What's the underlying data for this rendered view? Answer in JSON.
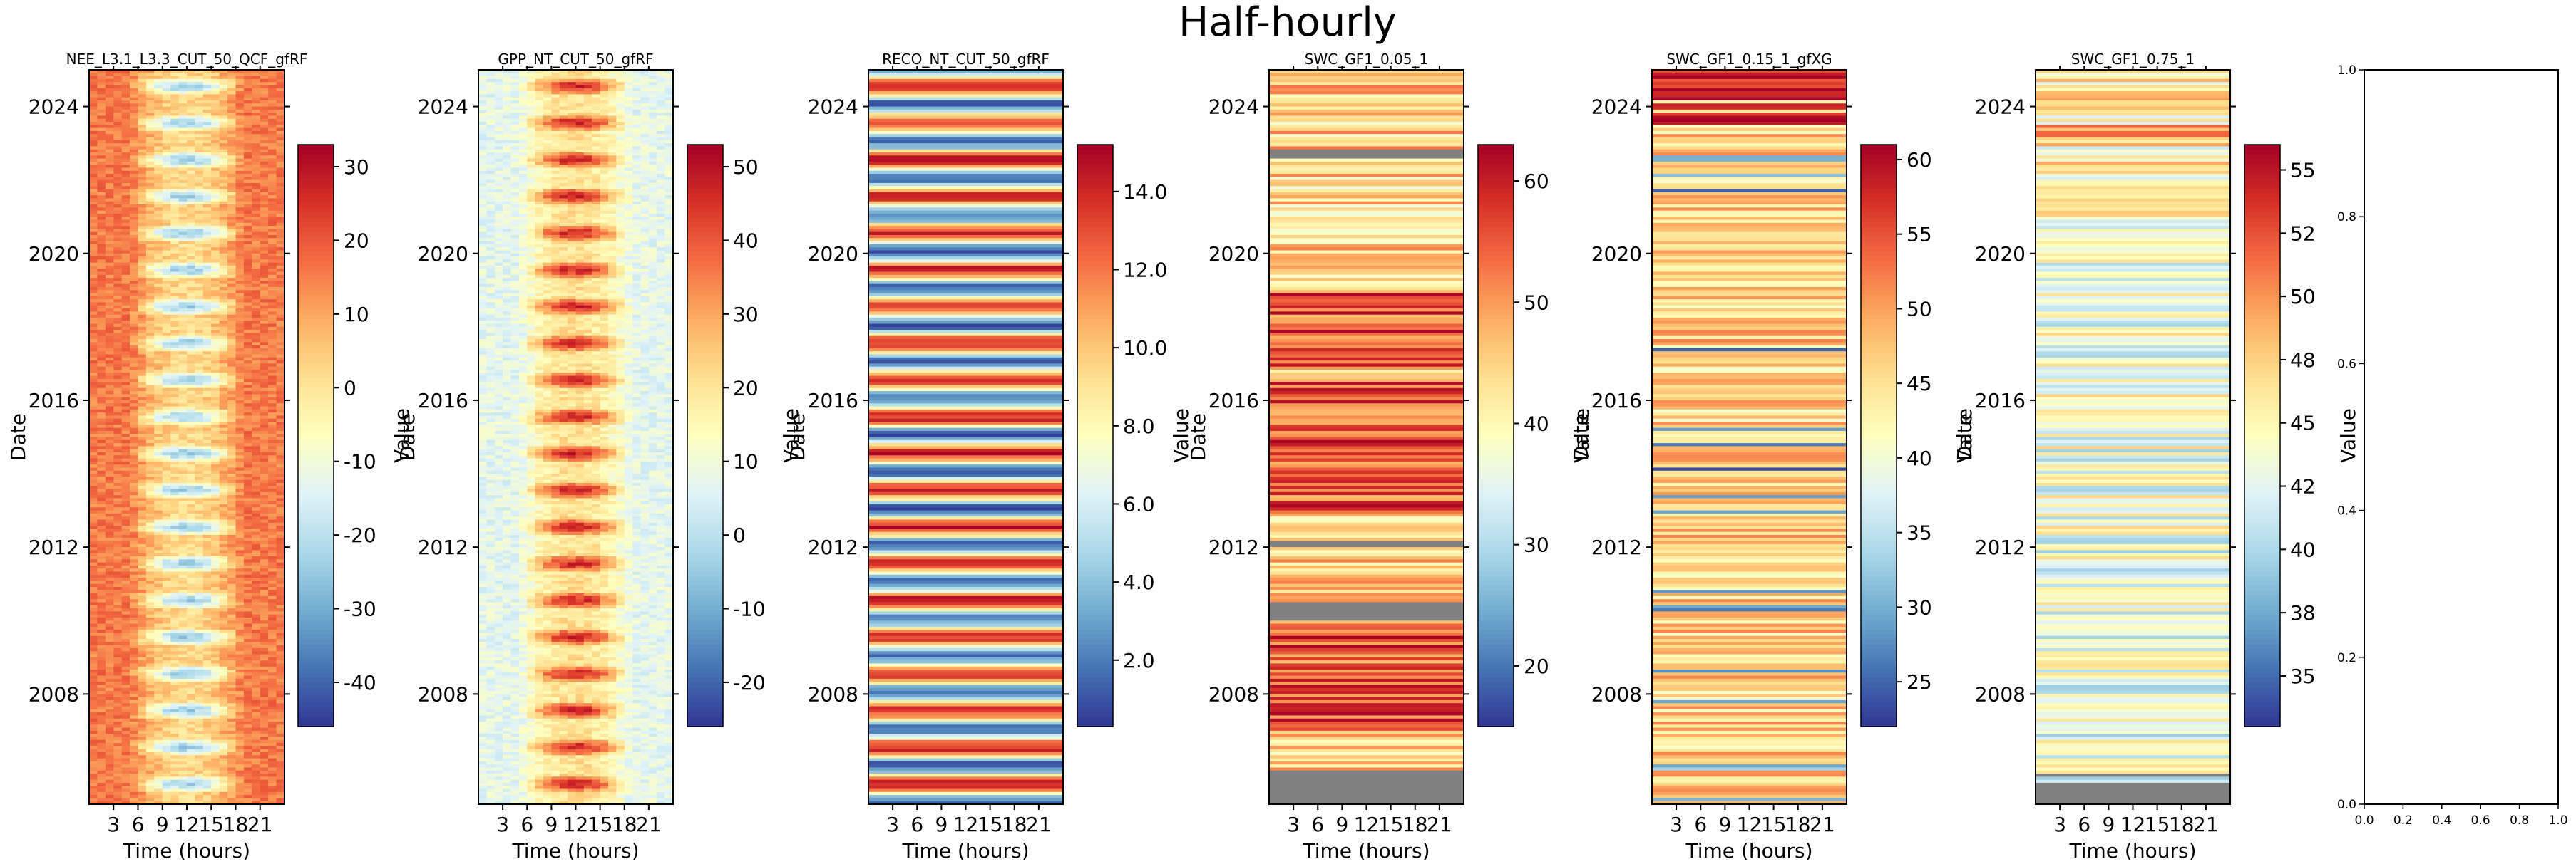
{
  "figure": {
    "title": "Half-hourly"
  },
  "chart_data": [
    {
      "type": "heatmap",
      "title": "NEE_L3.1_L3.3_CUT_50_QCF_gfRF",
      "xlabel": "Time (hours)",
      "ylabel": "Date",
      "xticks": [
        "3",
        "6",
        "9",
        "12",
        "15",
        "18",
        "21"
      ],
      "xlim": [
        0,
        24
      ],
      "yticks": [
        "2008",
        "2012",
        "2016",
        "2020",
        "2024"
      ],
      "ylim": [
        2005.0,
        2025.0
      ],
      "colorbar": {
        "label": "Value",
        "ticks": [
          "30",
          "20",
          "10",
          "0",
          "-10",
          "-20",
          "-30",
          "-40"
        ],
        "tick_values": [
          30,
          20,
          10,
          0,
          -10,
          -20,
          -30,
          -40
        ],
        "range": [
          -46,
          33
        ]
      },
      "colormap": "RdYlBu_r",
      "pattern": "diurnal",
      "missing_ranges": []
    },
    {
      "type": "heatmap",
      "title": "GPP_NT_CUT_50_gfRF",
      "xlabel": "Time (hours)",
      "ylabel": "Date",
      "xticks": [
        "3",
        "6",
        "9",
        "12",
        "15",
        "18",
        "21"
      ],
      "xlim": [
        0,
        24
      ],
      "yticks": [
        "2008",
        "2012",
        "2016",
        "2020",
        "2024"
      ],
      "ylim": [
        2005.0,
        2025.0
      ],
      "colorbar": {
        "label": "Value",
        "ticks": [
          "50",
          "40",
          "30",
          "20",
          "10",
          "0",
          "-10",
          "-20"
        ],
        "tick_values": [
          50,
          40,
          30,
          20,
          10,
          0,
          -10,
          -20
        ],
        "range": [
          -26,
          53
        ]
      },
      "colormap": "RdYlBu_r",
      "pattern": "diurnal-positive",
      "missing_ranges": []
    },
    {
      "type": "heatmap",
      "title": "RECO_NT_CUT_50_gfRF",
      "xlabel": "Time (hours)",
      "ylabel": "Date",
      "xticks": [
        "3",
        "6",
        "9",
        "12",
        "15",
        "18",
        "21"
      ],
      "xlim": [
        0,
        24
      ],
      "yticks": [
        "2008",
        "2012",
        "2016",
        "2020",
        "2024"
      ],
      "ylim": [
        2005.0,
        2025.0
      ],
      "colorbar": {
        "label": "Value",
        "ticks": [
          "14.0",
          "12.0",
          "10.0",
          "8.0",
          "6.0",
          "4.0",
          "2.0"
        ],
        "tick_values": [
          14,
          12,
          10,
          8,
          6,
          4,
          2
        ],
        "range": [
          0.3,
          15.2
        ]
      },
      "colormap": "RdYlBu_r",
      "pattern": "seasonal",
      "missing_ranges": []
    },
    {
      "type": "heatmap",
      "title": "SWC_GF1_0.05_1",
      "xlabel": "Time (hours)",
      "ylabel": "Date",
      "xticks": [
        "3",
        "6",
        "9",
        "12",
        "15",
        "18",
        "21"
      ],
      "xlim": [
        0,
        24
      ],
      "yticks": [
        "2008",
        "2012",
        "2016",
        "2020",
        "2024"
      ],
      "ylim": [
        2005.0,
        2025.0
      ],
      "colorbar": {
        "label": "Value",
        "ticks": [
          "60",
          "50",
          "40",
          "30",
          "20"
        ],
        "tick_values": [
          60,
          50,
          40,
          30,
          20
        ],
        "range": [
          15,
          63
        ]
      },
      "colormap": "RdYlBu_r",
      "pattern": "bands-wet",
      "missing_ranges": [
        [
          2005.0,
          2005.9
        ],
        [
          2010.0,
          2010.5
        ],
        [
          2012.0,
          2012.2
        ],
        [
          2022.6,
          2022.8
        ]
      ]
    },
    {
      "type": "heatmap",
      "title": "SWC_GF1_0.15_1_gfXG",
      "xlabel": "Time (hours)",
      "ylabel": "Date",
      "xticks": [
        "3",
        "6",
        "9",
        "12",
        "15",
        "18",
        "21"
      ],
      "xlim": [
        0,
        24
      ],
      "yticks": [
        "2008",
        "2012",
        "2016",
        "2020",
        "2024"
      ],
      "ylim": [
        2005.0,
        2025.0
      ],
      "colorbar": {
        "label": "Value",
        "ticks": [
          "60",
          "55",
          "50",
          "45",
          "40",
          "35",
          "30",
          "25"
        ],
        "tick_values": [
          60,
          55,
          50,
          45,
          40,
          35,
          30,
          25
        ],
        "range": [
          22,
          61
        ]
      },
      "colormap": "RdYlBu_r",
      "pattern": "bands-mid",
      "missing_ranges": []
    },
    {
      "type": "heatmap",
      "title": "SWC_GF1_0.75_1",
      "xlabel": "Time (hours)",
      "ylabel": "Date",
      "xticks": [
        "3",
        "6",
        "9",
        "12",
        "15",
        "18",
        "21"
      ],
      "xlim": [
        0,
        24
      ],
      "yticks": [
        "2008",
        "2012",
        "2016",
        "2020",
        "2024"
      ],
      "ylim": [
        2005.0,
        2025.0
      ],
      "colorbar": {
        "label": "Value",
        "ticks": [
          "55",
          "52",
          "50",
          "48",
          "45",
          "42",
          "40",
          "38",
          "35"
        ],
        "tick_values": [
          55,
          52.5,
          50,
          47.5,
          45,
          42.5,
          40,
          37.5,
          35
        ],
        "range": [
          33,
          56
        ]
      },
      "colormap": "RdYlBu_r",
      "pattern": "bands-deep",
      "missing_ranges": [
        [
          2005.0,
          2005.6
        ],
        [
          2005.75,
          2005.85
        ]
      ]
    },
    {
      "type": "empty",
      "xticks": [
        "0.0",
        "0.2",
        "0.4",
        "0.6",
        "0.8",
        "1.0"
      ],
      "yticks": [
        "0.0",
        "0.2",
        "0.4",
        "0.6",
        "0.8",
        "1.0"
      ],
      "xlim": [
        0,
        1
      ],
      "ylim": [
        0,
        1
      ]
    }
  ]
}
